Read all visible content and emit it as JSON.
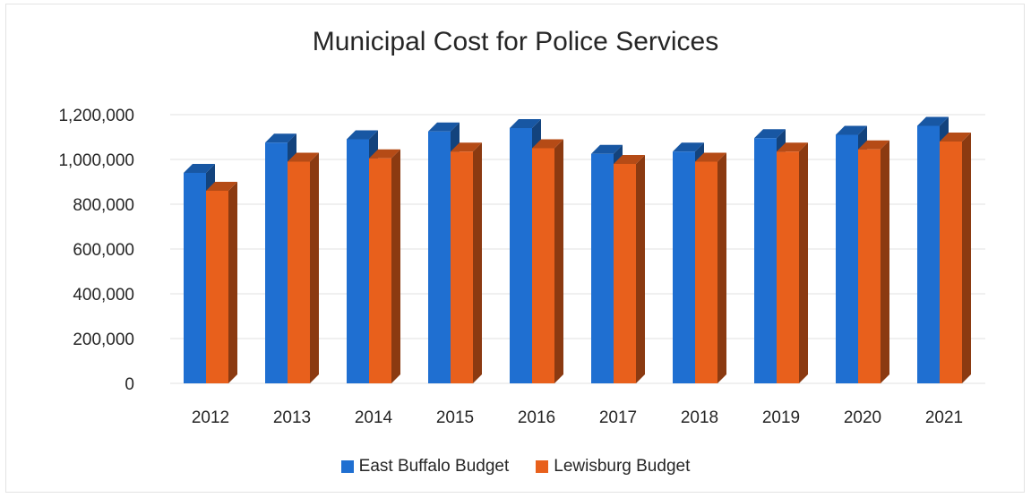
{
  "chart_data": {
    "type": "bar",
    "title": "Municipal Cost for Police Services",
    "categories": [
      "2012",
      "2013",
      "2014",
      "2015",
      "2016",
      "2017",
      "2018",
      "2019",
      "2020",
      "2021"
    ],
    "series": [
      {
        "name": "East Buffalo Budget",
        "color": "#1f6fd1",
        "values": [
          940000,
          1075000,
          1090000,
          1125000,
          1140000,
          1025000,
          1035000,
          1095000,
          1110000,
          1150000
        ]
      },
      {
        "name": "Lewisburg Budget",
        "color": "#e8601c",
        "values": [
          860000,
          990000,
          1005000,
          1035000,
          1050000,
          980000,
          990000,
          1035000,
          1045000,
          1080000
        ]
      }
    ],
    "ylim": [
      0,
      1200000
    ],
    "yticks": [
      "0",
      "200,000",
      "400,000",
      "600,000",
      "800,000",
      "1,000,000",
      "1,200,000"
    ],
    "grid": true,
    "legend": "bottom"
  }
}
